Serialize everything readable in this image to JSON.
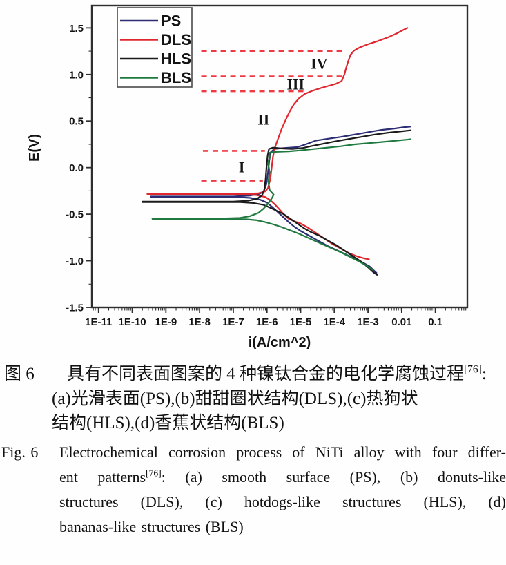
{
  "chart_data": {
    "type": "line",
    "title": "",
    "xlabel": "i(A/cm^2)",
    "ylabel": "E(V)",
    "x_scale": "log",
    "grid": false,
    "legend_position": "top-left",
    "xlim_log": [
      -11.2,
      -0.05
    ],
    "ylim": [
      -1.5,
      1.74
    ],
    "x_ticks": [
      {
        "log": -11,
        "label": "1E-11"
      },
      {
        "log": -10,
        "label": "1E-10"
      },
      {
        "log": -9,
        "label": "1E-9"
      },
      {
        "log": -8,
        "label": "1E-8"
      },
      {
        "log": -7,
        "label": "1E-7"
      },
      {
        "log": -6,
        "label": "1E-6"
      },
      {
        "log": -5,
        "label": "1E-5"
      },
      {
        "log": -4,
        "label": "1E-4"
      },
      {
        "log": -3,
        "label": "1E-3"
      },
      {
        "log": -2,
        "label": "0.01"
      },
      {
        "log": -1,
        "label": "0.1"
      }
    ],
    "y_ticks": [
      {
        "v": 1.5,
        "label": "1.5"
      },
      {
        "v": 1.0,
        "label": "1.0"
      },
      {
        "v": 0.5,
        "label": "0.5"
      },
      {
        "v": 0.0,
        "label": "0.0"
      },
      {
        "v": -0.5,
        "label": "-0.5"
      },
      {
        "v": -1.0,
        "label": "-1.0"
      },
      {
        "v": -1.5,
        "label": "-1.5"
      }
    ],
    "dash_color": "#ee3b43",
    "frame_color": "#2e2e2e",
    "ecorr_V": {
      "PS": -0.31,
      "DLS": -0.28,
      "HLS": -0.37,
      "BLS": -0.55
    },
    "dashed_lines": [
      {
        "E": 1.25,
        "from": -7.95,
        "to": -3.65
      },
      {
        "E": 0.98,
        "from": -7.95,
        "to": -3.76
      },
      {
        "E": 0.82,
        "from": -7.95,
        "to": -4.9
      },
      {
        "E": 0.18,
        "from": -7.9,
        "to": -6.06
      },
      {
        "E": -0.14,
        "from": -7.95,
        "to": -6.12
      }
    ],
    "annotations": [
      {
        "text": "IV",
        "logi": -4.45,
        "E": 1.12
      },
      {
        "text": "III",
        "logi": -5.15,
        "E": 0.9
      },
      {
        "text": "II",
        "logi": -6.1,
        "E": 0.52
      },
      {
        "text": "I",
        "logi": -6.75,
        "E": 0.01
      }
    ],
    "legend": [
      "PS",
      "DLS",
      "HLS",
      "BLS"
    ],
    "series": [
      {
        "name": "PS",
        "color": "#2d2d73",
        "segments": [
          [
            [
              -9.45,
              -0.31
            ],
            [
              -7.0,
              -0.31
            ],
            [
              -6.5,
              -0.3
            ],
            [
              -6.25,
              -0.285
            ],
            [
              -6.1,
              -0.26
            ],
            [
              -6.02,
              -0.18
            ],
            [
              -5.97,
              -0.05
            ],
            [
              -5.93,
              0.08
            ],
            [
              -5.88,
              0.17
            ],
            [
              -5.78,
              0.2
            ],
            [
              -5.5,
              0.21
            ],
            [
              -5.1,
              0.22
            ],
            [
              -4.85,
              0.25
            ],
            [
              -4.55,
              0.29
            ],
            [
              -4.2,
              0.31
            ],
            [
              -3.8,
              0.33
            ],
            [
              -3.4,
              0.355
            ],
            [
              -3.0,
              0.38
            ],
            [
              -2.6,
              0.405
            ],
            [
              -2.2,
              0.42
            ],
            [
              -1.9,
              0.435
            ],
            [
              -1.73,
              0.44
            ]
          ],
          [
            [
              -9.45,
              -0.315
            ],
            [
              -6.9,
              -0.315
            ],
            [
              -6.5,
              -0.325
            ],
            [
              -6.2,
              -0.345
            ],
            [
              -6.0,
              -0.375
            ],
            [
              -5.85,
              -0.42
            ],
            [
              -5.7,
              -0.47
            ],
            [
              -5.55,
              -0.52
            ],
            [
              -5.4,
              -0.57
            ],
            [
              -5.2,
              -0.63
            ],
            [
              -5.0,
              -0.68
            ],
            [
              -4.75,
              -0.73
            ],
            [
              -4.5,
              -0.78
            ],
            [
              -4.2,
              -0.84
            ],
            [
              -3.9,
              -0.89
            ],
            [
              -3.55,
              -0.95
            ],
            [
              -3.2,
              -1.01
            ],
            [
              -2.95,
              -1.06
            ],
            [
              -2.75,
              -1.13
            ]
          ]
        ]
      },
      {
        "name": "DLS",
        "color": "#e0262e",
        "segments": [
          [
            [
              -9.55,
              -0.28
            ],
            [
              -6.6,
              -0.28
            ],
            [
              -6.25,
              -0.275
            ],
            [
              -6.05,
              -0.255
            ],
            [
              -5.97,
              -0.22
            ],
            [
              -5.9,
              -0.12
            ],
            [
              -5.86,
              0.0
            ],
            [
              -5.82,
              0.12
            ],
            [
              -5.76,
              0.22
            ],
            [
              -5.68,
              0.3
            ],
            [
              -5.58,
              0.4
            ],
            [
              -5.46,
              0.5
            ],
            [
              -5.33,
              0.6
            ],
            [
              -5.2,
              0.68
            ],
            [
              -5.05,
              0.745
            ],
            [
              -4.88,
              0.79
            ],
            [
              -4.65,
              0.825
            ],
            [
              -4.4,
              0.855
            ],
            [
              -4.15,
              0.88
            ],
            [
              -3.95,
              0.9
            ],
            [
              -3.78,
              0.93
            ],
            [
              -3.7,
              1.0
            ],
            [
              -3.64,
              1.08
            ],
            [
              -3.58,
              1.15
            ],
            [
              -3.52,
              1.21
            ],
            [
              -3.42,
              1.255
            ],
            [
              -3.25,
              1.29
            ],
            [
              -3.0,
              1.325
            ],
            [
              -2.7,
              1.36
            ],
            [
              -2.4,
              1.4
            ],
            [
              -2.15,
              1.44
            ],
            [
              -1.97,
              1.475
            ],
            [
              -1.83,
              1.5
            ]
          ],
          [
            [
              -9.55,
              -0.285
            ],
            [
              -6.7,
              -0.285
            ],
            [
              -6.3,
              -0.295
            ],
            [
              -6.05,
              -0.315
            ],
            [
              -5.9,
              -0.35
            ],
            [
              -5.75,
              -0.4
            ],
            [
              -5.6,
              -0.46
            ],
            [
              -5.48,
              -0.51
            ],
            [
              -5.35,
              -0.55
            ],
            [
              -5.2,
              -0.575
            ],
            [
              -5.0,
              -0.6
            ],
            [
              -4.8,
              -0.64
            ],
            [
              -4.55,
              -0.7
            ],
            [
              -4.3,
              -0.76
            ],
            [
              -4.05,
              -0.82
            ],
            [
              -3.8,
              -0.87
            ],
            [
              -3.55,
              -0.92
            ],
            [
              -3.3,
              -0.955
            ],
            [
              -3.1,
              -0.975
            ],
            [
              -2.97,
              -0.985
            ]
          ]
        ]
      },
      {
        "name": "HLS",
        "color": "#1b1b1b",
        "segments": [
          [
            [
              -9.7,
              -0.365
            ],
            [
              -7.0,
              -0.365
            ],
            [
              -6.55,
              -0.355
            ],
            [
              -6.3,
              -0.335
            ],
            [
              -6.15,
              -0.3
            ],
            [
              -6.08,
              -0.24
            ],
            [
              -6.04,
              -0.12
            ],
            [
              -6.01,
              0.02
            ],
            [
              -5.98,
              0.13
            ],
            [
              -5.94,
              0.2
            ],
            [
              -5.82,
              0.215
            ],
            [
              -5.55,
              0.205
            ],
            [
              -5.25,
              0.2
            ],
            [
              -4.95,
              0.21
            ],
            [
              -4.7,
              0.23
            ],
            [
              -4.35,
              0.255
            ],
            [
              -4.0,
              0.28
            ],
            [
              -3.6,
              0.305
            ],
            [
              -3.2,
              0.33
            ],
            [
              -2.8,
              0.355
            ],
            [
              -2.4,
              0.375
            ],
            [
              -2.0,
              0.39
            ],
            [
              -1.73,
              0.4
            ]
          ],
          [
            [
              -9.7,
              -0.37
            ],
            [
              -6.8,
              -0.37
            ],
            [
              -6.4,
              -0.38
            ],
            [
              -6.1,
              -0.4
            ],
            [
              -5.9,
              -0.43
            ],
            [
              -5.7,
              -0.465
            ],
            [
              -5.5,
              -0.5
            ],
            [
              -5.3,
              -0.55
            ],
            [
              -5.1,
              -0.6
            ],
            [
              -4.9,
              -0.65
            ],
            [
              -4.7,
              -0.69
            ],
            [
              -4.45,
              -0.73
            ],
            [
              -4.2,
              -0.78
            ],
            [
              -3.95,
              -0.83
            ],
            [
              -3.7,
              -0.89
            ],
            [
              -3.45,
              -0.95
            ],
            [
              -3.2,
              -1.01
            ],
            [
              -3.0,
              -1.07
            ],
            [
              -2.85,
              -1.12
            ],
            [
              -2.73,
              -1.15
            ]
          ]
        ]
      },
      {
        "name": "BLS",
        "color": "#1e7a3e",
        "segments": [
          [
            [
              -9.4,
              -0.545
            ],
            [
              -7.3,
              -0.545
            ],
            [
              -6.8,
              -0.54
            ],
            [
              -6.5,
              -0.52
            ],
            [
              -6.25,
              -0.485
            ],
            [
              -6.1,
              -0.44
            ],
            [
              -5.95,
              -0.38
            ],
            [
              -5.84,
              -0.32
            ],
            [
              -5.8,
              -0.29
            ],
            [
              -5.92,
              -0.24
            ],
            [
              -5.96,
              -0.15
            ],
            [
              -5.92,
              -0.05
            ],
            [
              -5.97,
              0.05
            ],
            [
              -5.91,
              0.12
            ],
            [
              -5.94,
              0.16
            ],
            [
              -5.7,
              0.17
            ],
            [
              -5.35,
              0.175
            ],
            [
              -5.0,
              0.185
            ],
            [
              -4.6,
              0.2
            ],
            [
              -4.2,
              0.215
            ],
            [
              -3.8,
              0.23
            ],
            [
              -3.4,
              0.25
            ],
            [
              -3.0,
              0.262
            ],
            [
              -2.6,
              0.275
            ],
            [
              -2.2,
              0.288
            ],
            [
              -1.85,
              0.3
            ],
            [
              -1.73,
              0.305
            ]
          ],
          [
            [
              -9.4,
              -0.55
            ],
            [
              -7.0,
              -0.55
            ],
            [
              -6.6,
              -0.555
            ],
            [
              -6.3,
              -0.565
            ],
            [
              -6.05,
              -0.585
            ],
            [
              -5.8,
              -0.61
            ],
            [
              -5.55,
              -0.64
            ],
            [
              -5.3,
              -0.675
            ],
            [
              -5.05,
              -0.71
            ],
            [
              -4.8,
              -0.75
            ],
            [
              -4.55,
              -0.79
            ],
            [
              -4.3,
              -0.83
            ],
            [
              -4.05,
              -0.87
            ],
            [
              -3.8,
              -0.91
            ],
            [
              -3.55,
              -0.955
            ],
            [
              -3.3,
              -1.0
            ],
            [
              -3.05,
              -1.05
            ],
            [
              -2.85,
              -1.1
            ]
          ]
        ]
      }
    ]
  },
  "caption_zh": {
    "label": "图 6",
    "line1_pre": "具有不同表面图案的 4 种镍钛合金的电化学腐蚀过程",
    "line1_sup": "[76]",
    "line1_post": ":",
    "line2": "(a)光滑表面(PS),(b)甜甜圈状结构(DLS),(c)热狗状",
    "line3": "结构(HLS),(d)香蕉状结构(BLS)"
  },
  "caption_en": {
    "label": "Fig. 6",
    "line1": "Electrochemical corrosion process of NiTi alloy with four differ-",
    "line2_pre": "ent patterns",
    "line2_sup": "[76]",
    "line2_post": ": (a) smooth surface (PS), (b) donuts-like",
    "line3": "structures (DLS), (c) hotdogs-like structures (HLS), (d)",
    "line4": "bananas-like structures (BLS)"
  }
}
